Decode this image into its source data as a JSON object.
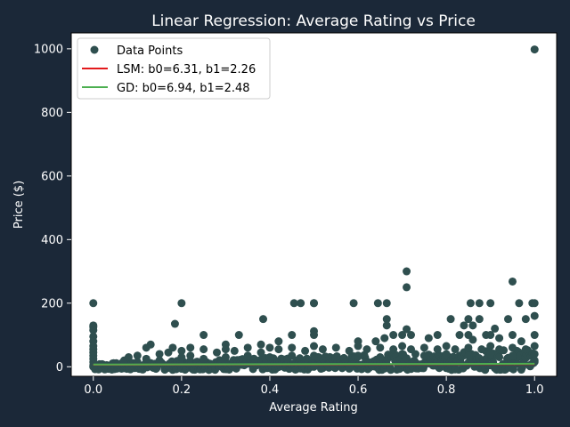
{
  "chart_data": {
    "type": "scatter",
    "title": "Linear Regression: Average Rating vs Price",
    "xlabel": "Average Rating",
    "ylabel": "Price ($)",
    "xlim": [
      -0.05,
      1.05
    ],
    "ylim": [
      -30,
      1050
    ],
    "xticks": [
      0.0,
      0.2,
      0.4,
      0.6,
      0.8,
      1.0
    ],
    "xtick_labels": [
      "0.0",
      "0.2",
      "0.4",
      "0.6",
      "0.8",
      "1.0"
    ],
    "yticks": [
      0,
      200,
      400,
      600,
      800,
      1000
    ],
    "ytick_labels": [
      "0",
      "200",
      "400",
      "600",
      "800",
      "1000"
    ],
    "grid": false,
    "legend_position": "top-left",
    "colors": {
      "background": "#1b2838",
      "plot_area": "#ffffff",
      "points": "#2f4f4f",
      "lsm_line": "#e31a1c",
      "gd_line": "#4caf50",
      "text": "#ffffff"
    },
    "series": [
      {
        "name": "Data Points",
        "kind": "scatter",
        "points": [
          [
            1.0,
            998
          ],
          [
            0.0,
            200
          ],
          [
            0.2,
            200
          ],
          [
            0.455,
            200
          ],
          [
            0.47,
            200
          ],
          [
            0.5,
            200
          ],
          [
            0.5,
            200
          ],
          [
            0.59,
            200
          ],
          [
            0.645,
            200
          ],
          [
            0.665,
            200
          ],
          [
            0.855,
            200
          ],
          [
            0.875,
            200
          ],
          [
            0.9,
            200
          ],
          [
            0.965,
            200
          ],
          [
            0.995,
            200
          ],
          [
            1.0,
            200
          ],
          [
            0.71,
            300
          ],
          [
            0.71,
            250
          ],
          [
            0.95,
            268
          ],
          [
            0.185,
            135
          ],
          [
            0.385,
            150
          ],
          [
            0.81,
            150
          ],
          [
            0.85,
            150
          ],
          [
            0.875,
            150
          ],
          [
            0.94,
            150
          ],
          [
            0.98,
            150
          ],
          [
            0.665,
            150
          ],
          [
            1.0,
            160
          ],
          [
            0.0,
            130
          ],
          [
            0.0,
            125
          ],
          [
            0.0,
            115
          ],
          [
            0.665,
            130
          ],
          [
            0.84,
            130
          ],
          [
            0.86,
            130
          ],
          [
            0.91,
            120
          ],
          [
            0.5,
            112
          ],
          [
            0.71,
            118
          ],
          [
            0.33,
            100
          ],
          [
            0.25,
            100
          ],
          [
            0.45,
            100
          ],
          [
            0.5,
            100
          ],
          [
            0.68,
            100
          ],
          [
            0.7,
            100
          ],
          [
            0.72,
            100
          ],
          [
            0.78,
            100
          ],
          [
            0.83,
            100
          ],
          [
            0.85,
            100
          ],
          [
            0.89,
            100
          ],
          [
            0.9,
            100
          ],
          [
            0.95,
            100
          ],
          [
            1.0,
            100
          ],
          [
            0.0,
            95
          ],
          [
            0.0,
            80
          ],
          [
            0.0,
            65
          ],
          [
            0.0,
            55
          ],
          [
            0.0,
            45
          ],
          [
            0.0,
            35
          ],
          [
            0.0,
            25
          ],
          [
            0.0,
            15
          ],
          [
            0.0,
            5
          ],
          [
            0.0,
            0
          ],
          [
            0.13,
            70
          ],
          [
            0.12,
            60
          ],
          [
            0.18,
            60
          ],
          [
            0.22,
            60
          ],
          [
            0.3,
            70
          ],
          [
            0.38,
            70
          ],
          [
            0.42,
            80
          ],
          [
            0.6,
            80
          ],
          [
            0.64,
            80
          ],
          [
            0.66,
            90
          ],
          [
            0.76,
            90
          ],
          [
            0.86,
            85
          ],
          [
            0.92,
            90
          ],
          [
            0.97,
            80
          ],
          [
            0.02,
            8
          ],
          [
            0.03,
            5
          ],
          [
            0.05,
            10
          ],
          [
            0.07,
            20
          ],
          [
            0.08,
            30
          ],
          [
            0.1,
            35
          ],
          [
            0.1,
            15
          ],
          [
            0.12,
            25
          ],
          [
            0.15,
            40
          ],
          [
            0.15,
            20
          ],
          [
            0.17,
            45
          ],
          [
            0.2,
            50
          ],
          [
            0.2,
            30
          ],
          [
            0.22,
            35
          ],
          [
            0.25,
            55
          ],
          [
            0.25,
            25
          ],
          [
            0.28,
            45
          ],
          [
            0.3,
            55
          ],
          [
            0.3,
            30
          ],
          [
            0.32,
            50
          ],
          [
            0.35,
            60
          ],
          [
            0.35,
            35
          ],
          [
            0.38,
            45
          ],
          [
            0.4,
            60
          ],
          [
            0.4,
            30
          ],
          [
            0.42,
            55
          ],
          [
            0.45,
            60
          ],
          [
            0.45,
            35
          ],
          [
            0.48,
            50
          ],
          [
            0.5,
            65
          ],
          [
            0.5,
            35
          ],
          [
            0.52,
            55
          ],
          [
            0.55,
            60
          ],
          [
            0.55,
            30
          ],
          [
            0.58,
            50
          ],
          [
            0.6,
            65
          ],
          [
            0.6,
            35
          ],
          [
            0.62,
            55
          ],
          [
            0.65,
            60
          ],
          [
            0.65,
            30
          ],
          [
            0.68,
            55
          ],
          [
            0.7,
            65
          ],
          [
            0.7,
            40
          ],
          [
            0.72,
            55
          ],
          [
            0.75,
            60
          ],
          [
            0.75,
            35
          ],
          [
            0.78,
            55
          ],
          [
            0.8,
            65
          ],
          [
            0.8,
            40
          ],
          [
            0.82,
            55
          ],
          [
            0.85,
            60
          ],
          [
            0.85,
            35
          ],
          [
            0.88,
            55
          ],
          [
            0.9,
            65
          ],
          [
            0.9,
            40
          ],
          [
            0.92,
            55
          ],
          [
            0.95,
            60
          ],
          [
            0.95,
            35
          ],
          [
            0.98,
            55
          ],
          [
            1.0,
            65
          ],
          [
            1.0,
            40
          ],
          [
            1.0,
            20
          ]
        ],
        "dense_band": {
          "x_range": [
            0.0,
            1.0
          ],
          "y_min": -10,
          "y_max_at_x0": 10,
          "y_max_at_x1": 55
        }
      },
      {
        "name": "LSM: b0=6.31, b1=2.26",
        "kind": "line",
        "intercept": 6.31,
        "slope": 2.26,
        "x_range": [
          0.0,
          1.0
        ]
      },
      {
        "name": "GD: b0=6.94, b1=2.48",
        "kind": "line",
        "intercept": 6.94,
        "slope": 2.48,
        "x_range": [
          0.0,
          1.0
        ]
      }
    ]
  }
}
